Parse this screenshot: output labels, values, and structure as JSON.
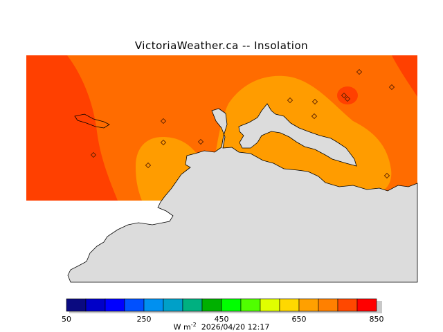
{
  "title": "VictoriaWeather.ca -- Insolation",
  "colorbar": {
    "ticks": [
      "50",
      "250",
      "450",
      "650",
      "850"
    ],
    "colors": [
      "#0a0a80",
      "#0000c8",
      "#0000ff",
      "#0050ff",
      "#0090f0",
      "#00a0c8",
      "#00b080",
      "#00b000",
      "#00ff00",
      "#50ff00",
      "#e0ff00",
      "#ffd800",
      "#ffa000",
      "#ff8000",
      "#ff4800",
      "#ff0000"
    ]
  },
  "units": "W m",
  "units_exp": "-2",
  "timestamp": "2026/04/20 12:17",
  "field_colors": {
    "dark": "#ff4000",
    "mid": "#ff6c00",
    "light": "#ff9c00",
    "land": "#dcdcdc"
  },
  "stations": [
    {
      "lon": 135,
      "lat": 224
    },
    {
      "lon": 214,
      "lat": 239
    },
    {
      "lon": 236,
      "lat": 175
    },
    {
      "lon": 236,
      "lat": 206
    },
    {
      "lon": 290,
      "lat": 205
    },
    {
      "lon": 419,
      "lat": 145
    },
    {
      "lon": 455,
      "lat": 147
    },
    {
      "lon": 454,
      "lat": 168
    },
    {
      "lon": 497,
      "lat": 138
    },
    {
      "lon": 502,
      "lat": 143
    },
    {
      "lon": 519,
      "lat": 104
    },
    {
      "lon": 566,
      "lat": 126
    },
    {
      "lon": 559,
      "lat": 254
    }
  ]
}
